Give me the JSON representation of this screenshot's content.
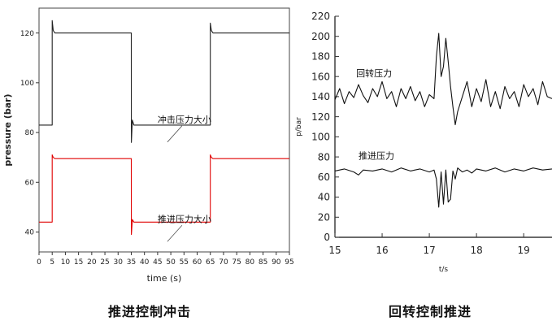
{
  "chart_data": [
    {
      "type": "line",
      "xlabel": "time (s)",
      "ylabel": "pressure (bar)",
      "xlim": [
        0,
        95
      ],
      "ylim": [
        32,
        130
      ],
      "xticks": [
        0,
        5,
        10,
        15,
        20,
        25,
        30,
        35,
        40,
        45,
        50,
        55,
        60,
        65,
        70,
        75,
        80,
        85,
        90,
        95
      ],
      "yticks": [
        40,
        60,
        80,
        100,
        120
      ],
      "grid": false,
      "caption": "推进控制冲击",
      "annotations": [
        {
          "text": "冲击压力大小",
          "x": 45,
          "y": 84
        },
        {
          "text": "推进压力大小",
          "x": 45,
          "y": 44
        }
      ],
      "series": [
        {
          "color": "#222222",
          "x": [
            0,
            5,
            5,
            5.4,
            6,
            35,
            35.05,
            35.4,
            36,
            65,
            65,
            65.4,
            66,
            95
          ],
          "y": [
            83,
            83,
            125,
            121,
            120,
            120,
            76,
            85,
            83,
            83,
            124,
            121,
            120,
            120
          ]
        },
        {
          "color": "#e00000",
          "x": [
            0,
            5,
            5,
            5.4,
            6,
            35,
            35.05,
            35.4,
            36,
            65,
            65,
            65.4,
            66,
            95
          ],
          "y": [
            44,
            44,
            71,
            70,
            69.5,
            69.5,
            39,
            45,
            44,
            44,
            71,
            70,
            69.5,
            69.5
          ]
        }
      ]
    },
    {
      "type": "line",
      "xlabel": "t/s",
      "ylabel": "p/bar",
      "xlim": [
        15,
        19.6
      ],
      "ylim": [
        0,
        220
      ],
      "xticks": [
        15,
        16,
        17,
        18,
        19
      ],
      "yticks": [
        0,
        20,
        40,
        60,
        80,
        100,
        120,
        140,
        160,
        180,
        200,
        220
      ],
      "grid": false,
      "caption": "回转控制推进",
      "annotations": [
        {
          "text": "回转压力",
          "x": 15.45,
          "y": 160
        },
        {
          "text": "推进压力",
          "x": 15.5,
          "y": 78
        }
      ],
      "series": [
        {
          "color": "#111111",
          "x": [
            15,
            15.1,
            15.2,
            15.3,
            15.4,
            15.5,
            15.6,
            15.7,
            15.8,
            15.9,
            16.0,
            16.1,
            16.2,
            16.3,
            16.4,
            16.5,
            16.6,
            16.7,
            16.8,
            16.9,
            17.0,
            17.1,
            17.15,
            17.2,
            17.25,
            17.3,
            17.35,
            17.4,
            17.45,
            17.5,
            17.55,
            17.6,
            17.7,
            17.8,
            17.9,
            18.0,
            18.1,
            18.2,
            18.3,
            18.4,
            18.5,
            18.6,
            18.7,
            18.8,
            18.9,
            19.0,
            19.1,
            19.2,
            19.3,
            19.4,
            19.5,
            19.6
          ],
          "y": [
            137,
            148,
            133,
            145,
            139,
            152,
            141,
            134,
            148,
            140,
            155,
            138,
            145,
            130,
            148,
            138,
            150,
            136,
            145,
            130,
            142,
            138,
            180,
            203,
            160,
            170,
            198,
            175,
            150,
            130,
            112,
            125,
            140,
            155,
            130,
            148,
            135,
            157,
            130,
            145,
            128,
            150,
            138,
            145,
            130,
            152,
            140,
            148,
            132,
            155,
            140,
            138
          ]
        },
        {
          "color": "#111111",
          "x": [
            15,
            15.2,
            15.4,
            15.5,
            15.6,
            15.8,
            16.0,
            16.2,
            16.4,
            16.6,
            16.8,
            17.0,
            17.1,
            17.15,
            17.2,
            17.25,
            17.3,
            17.35,
            17.4,
            17.45,
            17.5,
            17.55,
            17.6,
            17.7,
            17.8,
            17.9,
            18.0,
            18.2,
            18.4,
            18.6,
            18.8,
            19.0,
            19.2,
            19.4,
            19.6
          ],
          "y": [
            66,
            68,
            65,
            62,
            67,
            66,
            68,
            65,
            69,
            66,
            68,
            65,
            67,
            58,
            30,
            65,
            33,
            67,
            35,
            38,
            66,
            58,
            69,
            65,
            67,
            64,
            68,
            66,
            69,
            65,
            68,
            66,
            69,
            67,
            68
          ]
        }
      ]
    }
  ]
}
